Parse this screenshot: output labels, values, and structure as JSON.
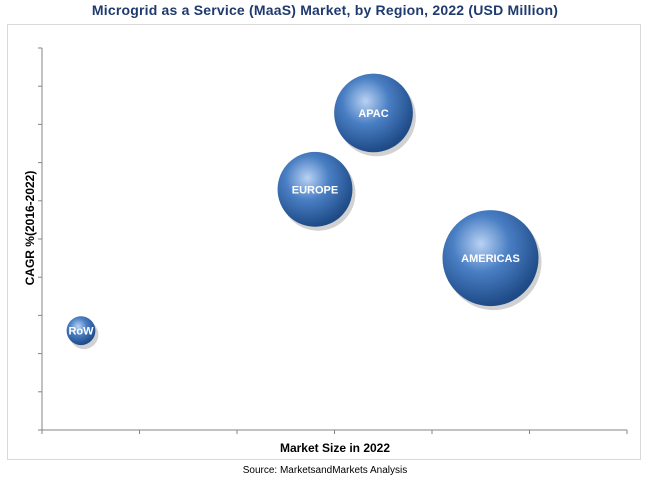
{
  "chart_data": {
    "type": "scatter",
    "title": "Microgrid as a Service (MaaS) Market, by Region, 2022 (USD Million)",
    "xlabel": "Market Size in 2022",
    "ylabel": "CAGR %(2016-2022)",
    "xlim": [
      0,
      6
    ],
    "ylim": [
      0,
      10
    ],
    "series": [
      {
        "name": "APAC",
        "x": 3.4,
        "y": 8.3,
        "size": 0.82
      },
      {
        "name": "EUROPE",
        "x": 2.8,
        "y": 6.3,
        "size": 0.78
      },
      {
        "name": "AMERICAS",
        "x": 4.6,
        "y": 4.5,
        "size": 1.0
      },
      {
        "name": "RoW",
        "x": 0.4,
        "y": 2.6,
        "size": 0.3
      }
    ]
  },
  "source": "Source: MarketsandMarkets Analysis",
  "colors": {
    "bubble": "#2f63a8",
    "bubble_highlight": "#a9c6ef",
    "title": "#1f3a6e"
  }
}
